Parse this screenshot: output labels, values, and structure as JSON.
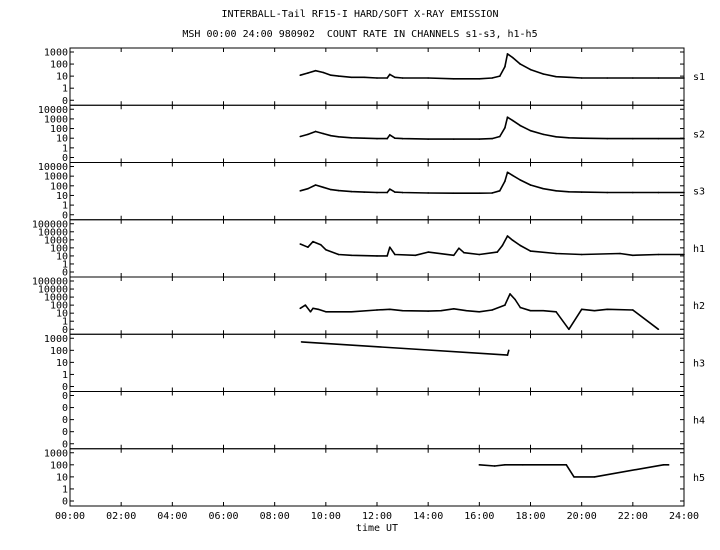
{
  "chart_data": {
    "type": "line",
    "title": "INTERBALL-Tail RF15-I HARD/SOFT X-RAY EMISSION",
    "subtitle": "MSH 00:00 24:00 980902  COUNT RATE IN CHANNELS s1-s3, h1-h5",
    "xlabel": "time UT",
    "x_ticks": [
      "00:00",
      "02:00",
      "04:00",
      "06:00",
      "08:00",
      "10:00",
      "12:00",
      "14:00",
      "16:00",
      "18:00",
      "20:00",
      "22:00",
      "24:00"
    ],
    "xlim": [
      0,
      24
    ],
    "y_scale": "log",
    "grid": false,
    "panels": [
      {
        "name": "s1",
        "ylim": [
          0.1,
          1000
        ],
        "y_ticks": [
          "1000",
          "100",
          "10",
          "1",
          "0"
        ],
        "x": [
          9.0,
          9.3,
          9.6,
          9.9,
          10.2,
          10.5,
          11.0,
          11.5,
          12.0,
          12.4,
          12.5,
          12.7,
          13.0,
          14.0,
          15.0,
          16.0,
          16.5,
          16.8,
          17.0,
          17.1,
          17.3,
          17.6,
          18.0,
          18.5,
          19.0,
          19.5,
          20.0,
          21.0,
          22.0,
          23.0,
          24.0
        ],
        "values": [
          12,
          18,
          28,
          20,
          12,
          10,
          8,
          8,
          7,
          7,
          14,
          8,
          7,
          7,
          6,
          6,
          7,
          10,
          60,
          700,
          350,
          100,
          35,
          15,
          9,
          8,
          7,
          7,
          7,
          7,
          7
        ]
      },
      {
        "name": "s2",
        "ylim": [
          0.1,
          10000
        ],
        "y_ticks": [
          "10000",
          "1000",
          "100",
          "10",
          "1",
          "0"
        ],
        "x": [
          9.0,
          9.3,
          9.6,
          9.9,
          10.2,
          10.5,
          11.0,
          11.5,
          12.0,
          12.4,
          12.5,
          12.7,
          13.0,
          14.0,
          15.0,
          16.0,
          16.5,
          16.8,
          17.0,
          17.1,
          17.3,
          17.6,
          18.0,
          18.5,
          19.0,
          19.5,
          20.0,
          21.0,
          22.0,
          23.0,
          24.0
        ],
        "values": [
          15,
          25,
          50,
          30,
          18,
          14,
          11,
          10,
          9,
          9,
          22,
          10,
          9,
          8,
          8,
          8,
          9,
          15,
          120,
          1500,
          700,
          200,
          60,
          25,
          14,
          11,
          10,
          9,
          9,
          9,
          9
        ]
      },
      {
        "name": "s3",
        "ylim": [
          0.1,
          10000
        ],
        "y_ticks": [
          "10000",
          "1000",
          "100",
          "10",
          "1",
          "0"
        ],
        "x": [
          9.0,
          9.3,
          9.6,
          9.9,
          10.2,
          10.5,
          11.0,
          11.5,
          12.0,
          12.4,
          12.5,
          12.7,
          13.0,
          14.0,
          15.0,
          16.0,
          16.5,
          16.8,
          17.0,
          17.1,
          17.3,
          17.6,
          18.0,
          18.5,
          19.0,
          19.5,
          20.0,
          21.0,
          22.0,
          23.0,
          24.0
        ],
        "values": [
          30,
          50,
          120,
          70,
          40,
          32,
          25,
          22,
          20,
          20,
          45,
          22,
          20,
          18,
          17,
          17,
          18,
          30,
          300,
          2500,
          1200,
          400,
          120,
          50,
          30,
          24,
          22,
          20,
          20,
          20,
          20
        ]
      },
      {
        "name": "h1",
        "ylim": [
          0.1,
          100000
        ],
        "y_ticks": [
          "100000",
          "10000",
          "1000",
          "100",
          "10",
          "1",
          "0"
        ],
        "x": [
          9.0,
          9.3,
          9.5,
          9.8,
          10.0,
          10.5,
          11.0,
          12.0,
          12.4,
          12.5,
          12.7,
          13.5,
          14.0,
          15.0,
          15.2,
          15.4,
          16.0,
          16.7,
          16.9,
          17.1,
          17.3,
          17.6,
          18.0,
          19.0,
          20.0,
          21.5,
          22.0,
          23.0,
          24.0
        ],
        "values": [
          300,
          120,
          600,
          250,
          60,
          15,
          12,
          10,
          10,
          120,
          15,
          12,
          30,
          12,
          90,
          25,
          15,
          30,
          200,
          3000,
          900,
          200,
          40,
          20,
          15,
          20,
          12,
          15,
          15
        ]
      },
      {
        "name": "h2",
        "ylim": [
          0.1,
          100000
        ],
        "y_ticks": [
          "100000",
          "10000",
          "1000",
          "100",
          "10",
          "1",
          "0"
        ],
        "x": [
          9.0,
          9.2,
          9.4,
          9.5,
          9.7,
          10.0,
          11.0,
          12.0,
          12.5,
          13.0,
          14.0,
          14.5,
          15.0,
          15.5,
          16.0,
          16.5,
          17.0,
          17.2,
          17.4,
          17.6,
          18.0,
          18.5,
          19.0,
          19.5,
          20.0,
          20.5,
          21.0,
          22.0,
          23.0
        ],
        "values": [
          40,
          100,
          15,
          40,
          30,
          15,
          15,
          25,
          30,
          20,
          18,
          20,
          35,
          20,
          15,
          25,
          100,
          2500,
          500,
          50,
          20,
          20,
          15,
          0.1,
          30,
          20,
          30,
          25,
          0.1
        ]
      },
      {
        "name": "h3",
        "ylim": [
          0.1,
          1000
        ],
        "y_ticks": [
          "1000",
          "100",
          "10",
          "1",
          "0"
        ],
        "x": [
          9.05,
          17.1,
          17.15
        ],
        "values": [
          500,
          40,
          100
        ]
      },
      {
        "name": "h4",
        "ylim": [
          0.1,
          1000
        ],
        "y_ticks": [
          "0",
          "0",
          "0",
          "0",
          "0"
        ],
        "x": [],
        "values": []
      },
      {
        "name": "h5",
        "ylim": [
          0.1,
          1000
        ],
        "y_ticks": [
          "1000",
          "100",
          "10",
          "1",
          "0"
        ],
        "x": [
          16.0,
          16.6,
          17.0,
          17.7,
          19.4,
          19.7,
          20.5,
          23.2,
          23.4
        ],
        "values": [
          100,
          80,
          100,
          100,
          100,
          10,
          10,
          100,
          100
        ]
      }
    ]
  }
}
